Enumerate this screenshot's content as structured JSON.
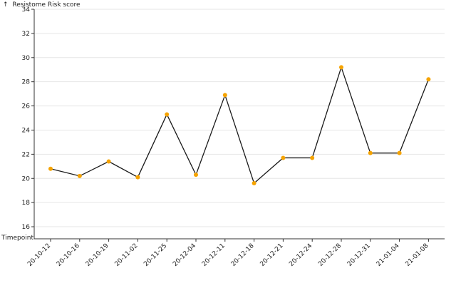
{
  "chart_data": {
    "type": "line",
    "ylabel": "Resistome Risk score",
    "ylabel_prefix": "↑",
    "xlabel": "Timepoint",
    "ylim": [
      15,
      34
    ],
    "yticks": [
      16,
      18,
      20,
      22,
      24,
      26,
      28,
      30,
      32,
      34
    ],
    "grid": "horizontal",
    "colors": {
      "line": "#1a1a1a",
      "point": "#f5a300",
      "grid": "#e6e6e6",
      "axis": "#333333"
    },
    "categories": [
      "20-10-12",
      "20-10-16",
      "20-10-19",
      "20-11-02",
      "20-11-25",
      "20-12-04",
      "20-12-11",
      "20-12-18",
      "20-12-21",
      "20-12-24",
      "20-12-28",
      "20-12-31",
      "21-01-04",
      "21-01-08"
    ],
    "values": [
      20.8,
      20.2,
      21.4,
      20.1,
      25.3,
      20.3,
      26.9,
      19.6,
      21.7,
      21.7,
      29.2,
      22.1,
      22.1,
      28.2
    ]
  }
}
